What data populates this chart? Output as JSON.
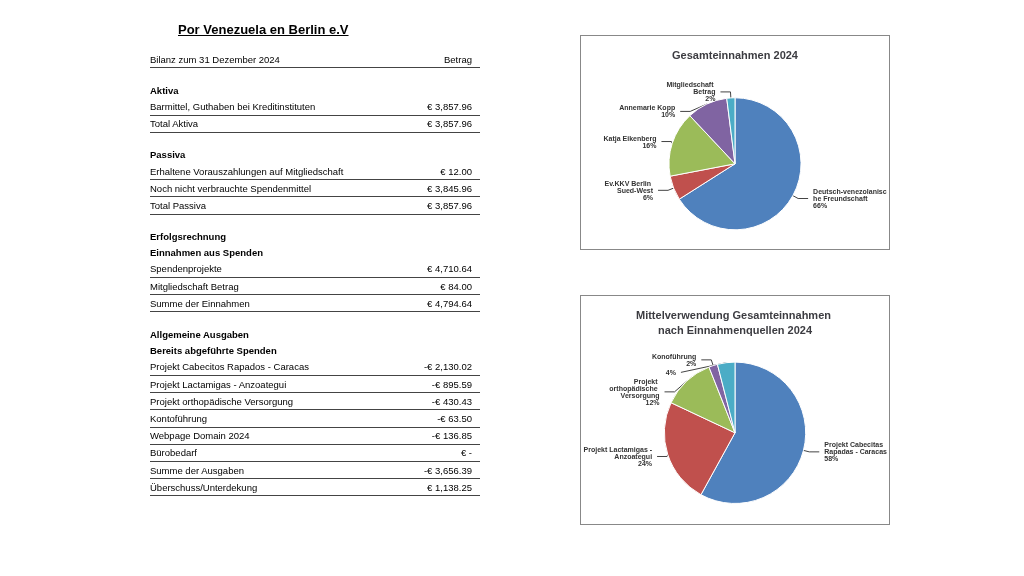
{
  "chart_data": [
    {
      "type": "other",
      "title": "Por Venezuela en Berlin e.V",
      "annotations": [
        "Bilanz zum 31 Dezember 2024",
        "Betrag",
        "Aktiva",
        "Barmittel, Guthaben bei Kreditinstituten",
        "€ 3,857.96",
        "Total Aktiva",
        "€ 3,857.96",
        "Passiva",
        "Erhaltene Vorauszahlungen auf Mitgliedschaft",
        "€ 12.00",
        "Noch nicht verbrauchte Spendenmittel",
        "€ 3,845.96",
        "Total Passiva",
        "€ 3,857.96",
        "Erfolgsrechnung",
        "Einnahmen aus Spenden",
        "Spendenprojekte",
        "€ 4,710.64",
        "Mitgliedschaft Betrag",
        "€ 84.00",
        "Summe der Einnahmen",
        "€ 4,794.64",
        "Allgemeine Ausgaben",
        "Bereits abgeführte Spenden",
        "Projekt Cabecitos Rapados - Caracas",
        "-€ 2,130.02",
        "Projekt Lactamigas - Anzoategui",
        "-€ 895.59",
        "Projekt orthopädische Versorgung",
        "-€ 430.43",
        "Kontoführung",
        "-€ 63.50",
        "Webpage Domain 2024",
        "-€ 136.85",
        "Bürobedarf",
        "€ -",
        "Summe der Ausgaben",
        "-€ 3,656.39",
        "Überschuss/Unterdekung",
        "€ 1,138.25"
      ]
    },
    {
      "type": "pie",
      "title": "Gesamteinnahmen 2024",
      "categories": [
        "Deutsch-venezolanische Freundschaft",
        "Ev.KKV Berlin Sued-West",
        "Katja Eikenberg",
        "Annemarie Kopp",
        "Mitgliedschaft Betrag"
      ],
      "values": [
        66,
        6,
        16,
        10,
        2
      ],
      "value_labels": [
        "66%",
        "6%",
        "16%",
        "10%",
        "2%"
      ],
      "colors": [
        "#4f81bd",
        "#c0504d",
        "#9bbb59",
        "#8064a2",
        "#4bacc6"
      ]
    },
    {
      "type": "pie",
      "title": "Mittelverwendung Gesamteinnahmen nach Einnahmenquellen 2024",
      "categories": [
        "Projekt Cabecitas Rapadas - Caracas",
        "Projekt Lactamigas - Anzoategui",
        "Projekt orthopädische Versorgung",
        "Konoführung",
        null
      ],
      "values": [
        58,
        24,
        12,
        2,
        4
      ],
      "value_labels": [
        "58%",
        "24%",
        "12%",
        "2%",
        "4%"
      ],
      "colors": [
        "#4f81bd",
        "#c0504d",
        "#9bbb59",
        "#8064a2",
        "#4bacc6"
      ]
    }
  ]
}
